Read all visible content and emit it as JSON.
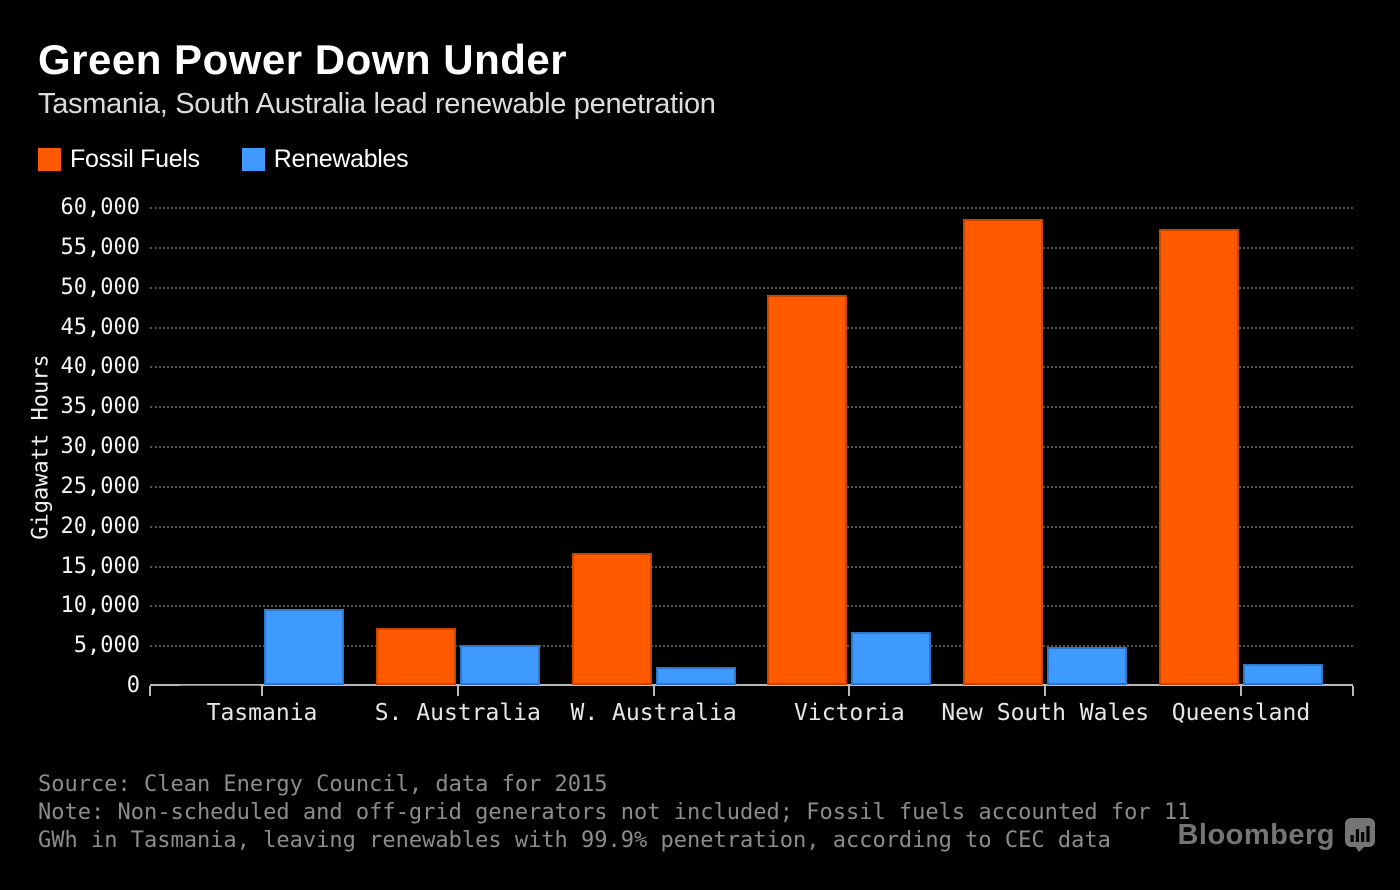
{
  "header": {
    "title": "Green Power Down Under",
    "subtitle": "Tasmania, South Australia lead renewable penetration"
  },
  "legend": {
    "items": [
      {
        "label": "Fossil Fuels",
        "color": "#FF5A00"
      },
      {
        "label": "Renewables",
        "color": "#3E9AFF"
      }
    ]
  },
  "chart_data": {
    "type": "bar",
    "grouped": true,
    "categories": [
      "Tasmania",
      "S. Australia",
      "W. Australia",
      "Victoria",
      "New South Wales",
      "Queensland"
    ],
    "series": [
      {
        "name": "Fossil Fuels",
        "color": "#FF5A00",
        "values": [
          11,
          7200,
          16600,
          48900,
          58500,
          57300
        ]
      },
      {
        "name": "Renewables",
        "color": "#3E9AFF",
        "values": [
          9500,
          5000,
          2300,
          6700,
          4800,
          2600
        ]
      }
    ],
    "title": "Green Power Down Under",
    "xlabel": "",
    "ylabel": "Gigawatt Hours",
    "unit": "GWh",
    "ylim": [
      0,
      60000
    ],
    "ytick_step": 5000,
    "ytick_labels": [
      "0",
      "5,000",
      "10,000",
      "15,000",
      "20,000",
      "25,000",
      "30,000",
      "35,000",
      "40,000",
      "45,000",
      "50,000",
      "55,000",
      "60,000"
    ],
    "grid": "horizontal-dotted",
    "legend_position": "top-left"
  },
  "footer": {
    "source": "Source: Clean Energy Council, data for 2015",
    "note_lines": [
      "Note: Non-scheduled and off-grid generators not included; Fossil fuels accounted for 11",
      "GWh in Tasmania, leaving renewables with 99.9% penetration, according to CEC data"
    ],
    "logo_text": "Bloomberg"
  },
  "colors": {
    "background": "#000000",
    "fossil": "#FF5A00",
    "renewables": "#3E9AFF",
    "gridline": "#525252",
    "axis": "#B9B9B9",
    "title_text": "#FFFFFF",
    "muted_text": "#8C8C8C",
    "logo": "#757575"
  }
}
